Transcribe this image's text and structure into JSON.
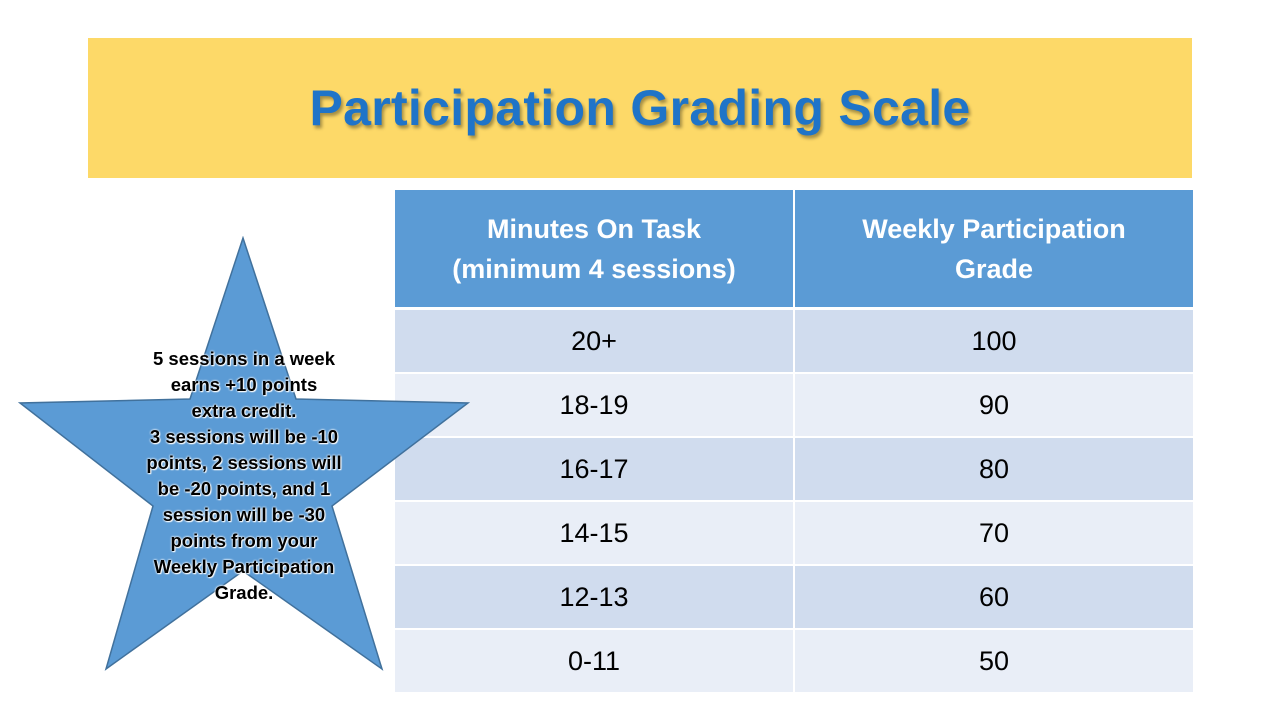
{
  "title": "Participation Grading Scale",
  "table": {
    "headers": [
      {
        "line1": "Minutes On Task",
        "line2": "(minimum 4 sessions)"
      },
      {
        "line1": "Weekly Participation",
        "line2": "Grade"
      }
    ],
    "rows": [
      {
        "minutes": "20+",
        "grade": "100"
      },
      {
        "minutes": "18-19",
        "grade": "90"
      },
      {
        "minutes": "16-17",
        "grade": "80"
      },
      {
        "minutes": "14-15",
        "grade": "70"
      },
      {
        "minutes": "12-13",
        "grade": "60"
      },
      {
        "minutes": "0-11",
        "grade": "50"
      }
    ]
  },
  "star_note": {
    "lines": [
      "5 sessions in a week",
      "earns +10 points",
      "extra credit.",
      "3 sessions will be -10",
      "points, 2 sessions will",
      "be -20 points, and 1",
      "session will be -30",
      "points from your",
      "Weekly Participation",
      "Grade."
    ]
  },
  "colors": {
    "banner": "#fdd968",
    "title": "#1f74c8",
    "table_header": "#5b9bd5",
    "row_dark": "#d0dcee",
    "row_light": "#e9eef7",
    "star_fill": "#5b9bd5",
    "star_stroke": "#41719c"
  }
}
